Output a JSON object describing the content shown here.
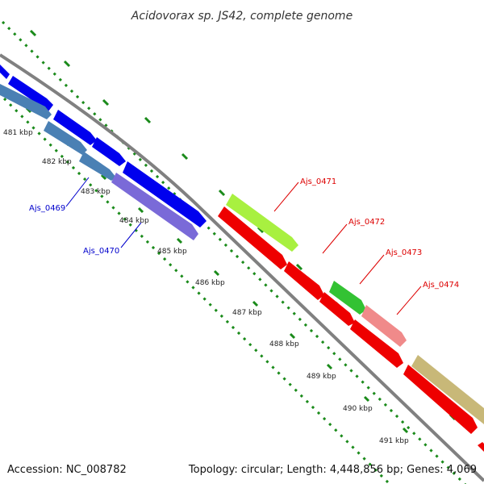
{
  "title": "Acidovorax sp. JS42, complete genome",
  "footer": {
    "accession": "Accession: NC_008782",
    "summary": "Topology: circular; Length: 4,448,856 bp; Genes: 4,069"
  },
  "ticks": [
    {
      "label": "481 kbp"
    },
    {
      "label": "482 kbp"
    },
    {
      "label": "483 kbp"
    },
    {
      "label": "484 kbp"
    },
    {
      "label": "485 kbp"
    },
    {
      "label": "486 kbp"
    },
    {
      "label": "487 kbp"
    },
    {
      "label": "488 kbp"
    },
    {
      "label": "489 kbp"
    },
    {
      "label": "490 kbp"
    },
    {
      "label": "491 kbp"
    }
  ],
  "gene_labels": {
    "ajs_0469": "Ajs_0469",
    "ajs_0470": "Ajs_0470",
    "ajs_0471": "Ajs_0471",
    "ajs_0472": "Ajs_0472",
    "ajs_0473": "Ajs_0473",
    "ajs_0474": "Ajs_0474"
  },
  "colors": {
    "forward_gene": "#0000ee",
    "reverse_gene": "#ee0000",
    "steelblue_gene": "#4a80b4",
    "slateblue_gene": "#7a6ad8",
    "lime_gene": "#a8f040",
    "green_gene": "#33c233",
    "salmon_gene": "#f08a8a",
    "khaki_gene": "#c8b878",
    "backbone": "#808080",
    "tick_marks": "#1a8a1a",
    "label_blue": "#0000cc",
    "label_red": "#dd0000"
  }
}
